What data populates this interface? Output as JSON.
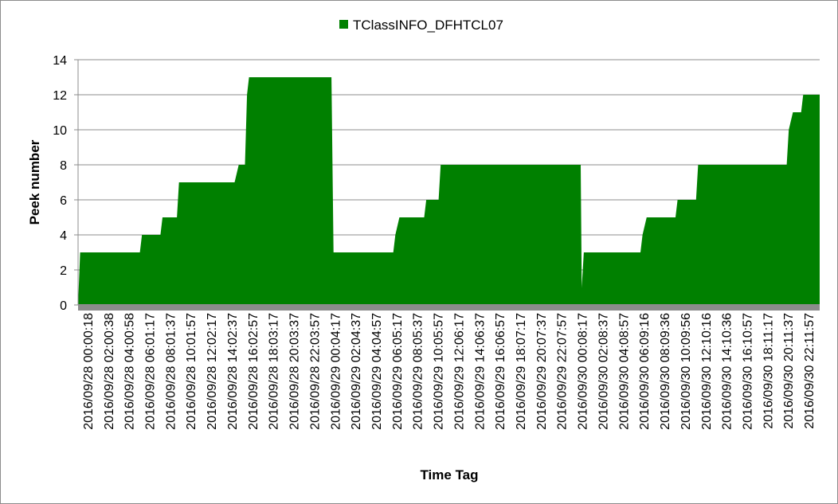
{
  "chart_data": {
    "type": "area",
    "title": "",
    "xlabel": "Time Tag",
    "ylabel": "Peek number",
    "ylim": [
      0,
      14
    ],
    "y_ticks": [
      0,
      2,
      4,
      6,
      8,
      10,
      12,
      14
    ],
    "grid": "horizontal",
    "legend_position": "top",
    "series": [
      {
        "name": "TClassINFO_DFHTCL07",
        "color": "#008000",
        "values": [
          3,
          3,
          3,
          4,
          5,
          7,
          7,
          8,
          13,
          13,
          13,
          13,
          3,
          3,
          3,
          4,
          5,
          6,
          8,
          8,
          8,
          8,
          8,
          8,
          3,
          3,
          3,
          4,
          5,
          6,
          8,
          8,
          8,
          8,
          10,
          12
        ]
      }
    ],
    "categories": [
      "2016/09/28 00:00:18",
      "2016/09/28 02:00:38",
      "2016/09/28 04:00:58",
      "2016/09/28 06:01:17",
      "2016/09/28 08:01:37",
      "2016/09/28 10:01:57",
      "2016/09/28 12:02:17",
      "2016/09/28 14:02:37",
      "2016/09/28 16:02:57",
      "2016/09/28 18:03:17",
      "2016/09/28 20:03:37",
      "2016/09/28 22:03:57",
      "2016/09/29 00:04:17",
      "2016/09/29 02:04:37",
      "2016/09/29 04:04:57",
      "2016/09/29 06:05:17",
      "2016/09/29 08:05:37",
      "2016/09/29 10:05:57",
      "2016/09/29 12:06:17",
      "2016/09/29 14:06:37",
      "2016/09/29 16:06:57",
      "2016/09/29 18:07:17",
      "2016/09/29 20:07:37",
      "2016/09/29 22:07:57",
      "2016/09/30 00:08:17",
      "2016/09/30 02:08:37",
      "2016/09/30 04:08:57",
      "2016/09/30 06:09:16",
      "2016/09/30 08:09:36",
      "2016/09/30 10:09:56",
      "2016/09/30 12:10:16",
      "2016/09/30 14:10:36",
      "2016/09/30 16:10:57",
      "2016/09/30 18:11:17",
      "2016/09/30 20:11:37",
      "2016/09/30 22:11:57"
    ],
    "profile": [
      [
        0,
        0
      ],
      [
        0.1,
        3
      ],
      [
        3.0,
        3
      ],
      [
        3.1,
        4
      ],
      [
        4.0,
        4
      ],
      [
        4.1,
        5
      ],
      [
        4.8,
        5
      ],
      [
        4.9,
        7
      ],
      [
        7.6,
        7
      ],
      [
        7.8,
        8
      ],
      [
        8.1,
        8
      ],
      [
        8.2,
        12
      ],
      [
        8.3,
        13
      ],
      [
        12.3,
        13
      ],
      [
        12.4,
        3
      ],
      [
        15.3,
        3
      ],
      [
        15.4,
        4
      ],
      [
        15.6,
        5
      ],
      [
        16.8,
        5
      ],
      [
        16.9,
        6
      ],
      [
        17.5,
        6
      ],
      [
        17.6,
        8
      ],
      [
        24.4,
        8
      ],
      [
        24.45,
        1
      ],
      [
        24.55,
        3
      ],
      [
        27.3,
        3
      ],
      [
        27.4,
        4
      ],
      [
        27.6,
        5
      ],
      [
        29.0,
        5
      ],
      [
        29.1,
        6
      ],
      [
        30.0,
        6
      ],
      [
        30.1,
        8
      ],
      [
        34.4,
        8
      ],
      [
        34.5,
        10
      ],
      [
        34.7,
        11
      ],
      [
        35.1,
        11
      ],
      [
        35.2,
        12
      ],
      [
        36.1,
        12
      ]
    ]
  }
}
